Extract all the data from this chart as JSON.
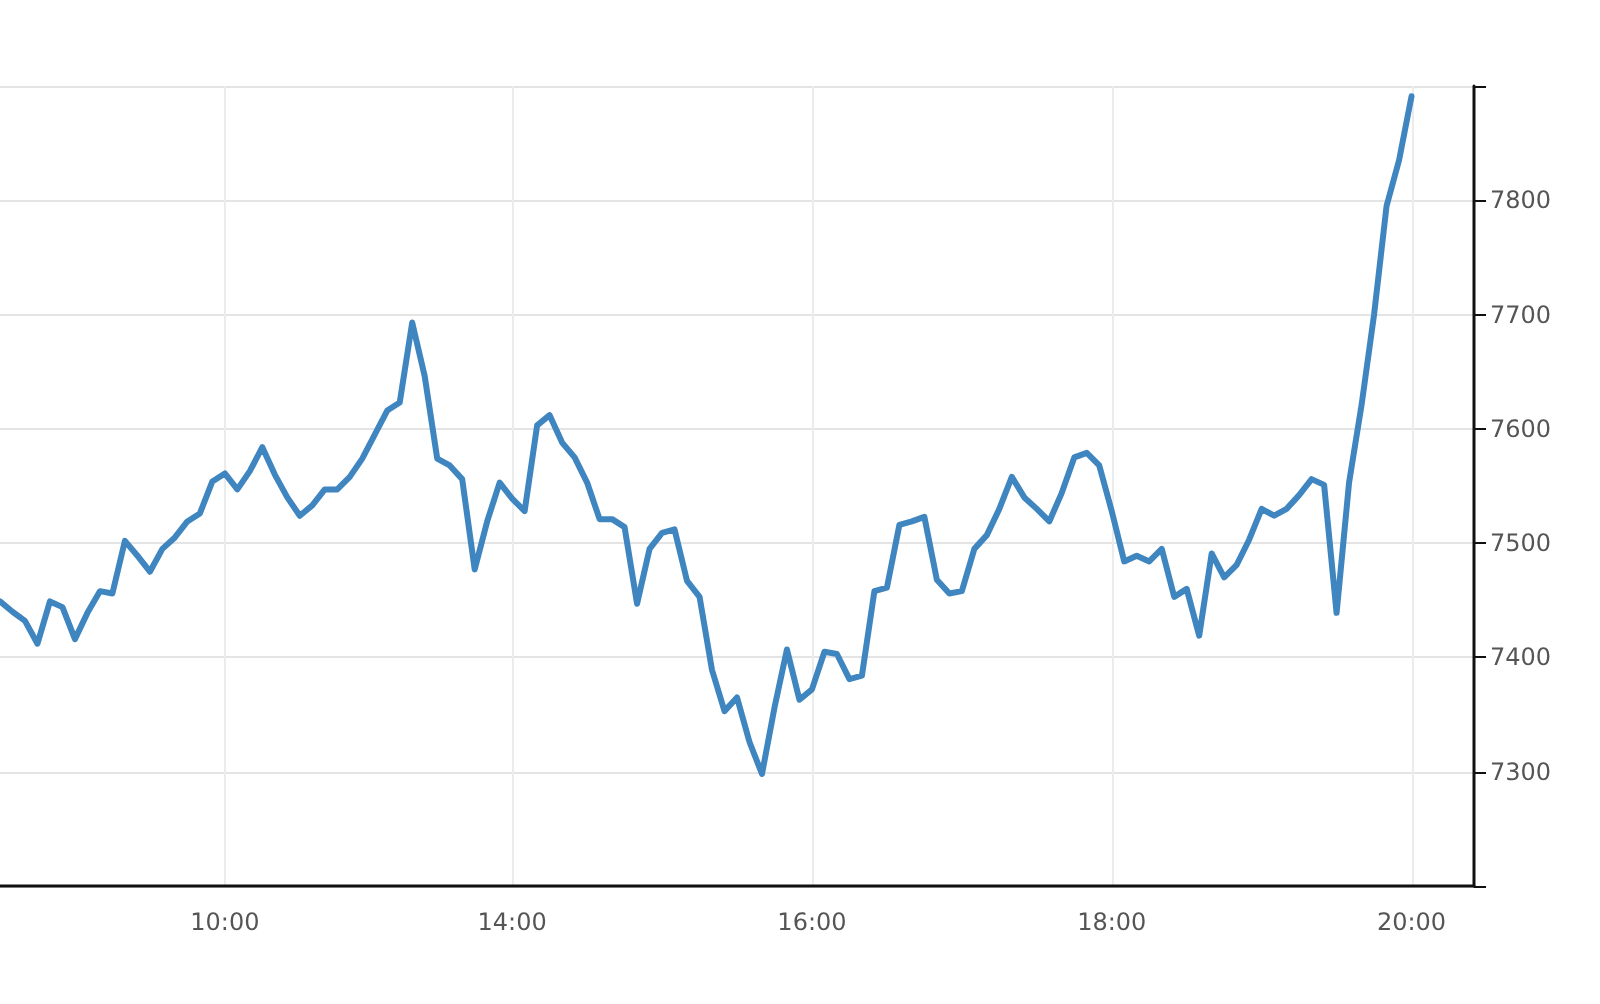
{
  "chart_data": {
    "type": "line",
    "categories": [
      null,
      null,
      null,
      null,
      null,
      null,
      null,
      null,
      null,
      null,
      null,
      null,
      null,
      null,
      null,
      null,
      null,
      null,
      "10:00",
      null,
      null,
      null,
      null,
      null,
      null,
      null,
      null,
      null,
      null,
      null,
      null,
      null,
      null,
      null,
      null,
      null,
      null,
      null,
      null,
      null,
      null,
      "14:00",
      null,
      null,
      null,
      null,
      null,
      null,
      null,
      null,
      null,
      null,
      null,
      null,
      null,
      null,
      null,
      null,
      null,
      null,
      null,
      null,
      null,
      null,
      null,
      "16:00",
      null,
      null,
      null,
      null,
      null,
      null,
      null,
      null,
      null,
      null,
      null,
      null,
      null,
      null,
      null,
      null,
      null,
      null,
      null,
      null,
      null,
      null,
      null,
      "18:00",
      null,
      null,
      null,
      null,
      null,
      null,
      null,
      null,
      null,
      null,
      null,
      null,
      null,
      null,
      null,
      null,
      null,
      null,
      null,
      null,
      null,
      null,
      null,
      "20:00",
      null,
      null,
      null,
      null,
      null
    ],
    "series": [
      {
        "color": "#3f86c0",
        "values": [
          7449,
          7440,
          7432,
          7412,
          7449,
          7444,
          7416,
          7439,
          7458,
          7456,
          7502,
          7489,
          7475,
          7495,
          7505,
          7519,
          7526,
          7554,
          7561,
          7547,
          7563,
          7584,
          7560,
          7540,
          7524,
          7533,
          7547,
          7547,
          7558,
          7574,
          7595,
          7616,
          7623,
          7693,
          7646,
          7574,
          7568,
          7556,
          7477,
          7519,
          7553,
          7539,
          7528,
          7603,
          7612,
          7588,
          7575,
          7553,
          7521,
          7521,
          7514,
          7447,
          7495,
          7509,
          7512,
          7467,
          7453,
          7389,
          7353,
          7365,
          7326,
          7298,
          7356,
          7407,
          7363,
          7372,
          7405,
          7403,
          7381,
          7384,
          7458,
          7461,
          7516,
          7519,
          7523,
          7468,
          7456,
          7458,
          7495,
          7507,
          7530,
          7558,
          7540,
          7530,
          7519,
          7544,
          7575,
          7579,
          7568,
          7528,
          7484,
          7489,
          7484,
          7495,
          7453,
          7460,
          7419,
          7491,
          7470,
          7481,
          7503,
          7530,
          7524,
          7530,
          7542,
          7556,
          7551,
          7439,
          7553,
          7621,
          7700,
          7795,
          7835,
          7891,
          null,
          null,
          null,
          null,
          null
        ]
      }
    ],
    "ylim": [
      7200,
      7900
    ],
    "yticks": [
      {
        "value": 7200,
        "label": null
      },
      7300,
      7400,
      7500,
      7600,
      7700,
      7800,
      {
        "value": 7900,
        "label": null
      }
    ],
    "grid": true
  }
}
